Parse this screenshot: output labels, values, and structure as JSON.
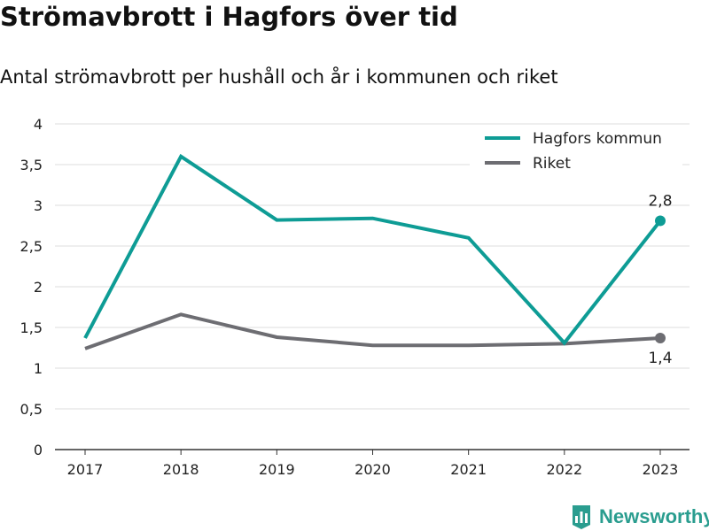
{
  "title": "Strömavbrott i Hagfors över tid",
  "subtitle": "Antal strömavbrott per hushåll och år i kommunen och riket",
  "brand": {
    "name": "Newsworthy",
    "icon": "newsworthy-logo-icon",
    "color": "#2a9d8f"
  },
  "chart_data": {
    "type": "line",
    "categories": [
      "2017",
      "2018",
      "2019",
      "2020",
      "2021",
      "2022",
      "2023"
    ],
    "ylim": [
      0,
      4
    ],
    "yticks": [
      "0",
      "0,5",
      "1",
      "1,5",
      "2",
      "2,5",
      "3",
      "3,5",
      "4"
    ],
    "grid": true,
    "legend": "top-right",
    "series": [
      {
        "name": "Hagfors kommun",
        "color": "#0e9c95",
        "values": [
          1.37,
          3.6,
          2.82,
          2.84,
          2.6,
          1.31,
          2.81
        ],
        "end_label": "2,8"
      },
      {
        "name": "Riket",
        "color": "#6d6d72",
        "values": [
          1.24,
          1.66,
          1.38,
          1.28,
          1.28,
          1.3,
          1.37
        ],
        "end_label": "1,4"
      }
    ]
  }
}
